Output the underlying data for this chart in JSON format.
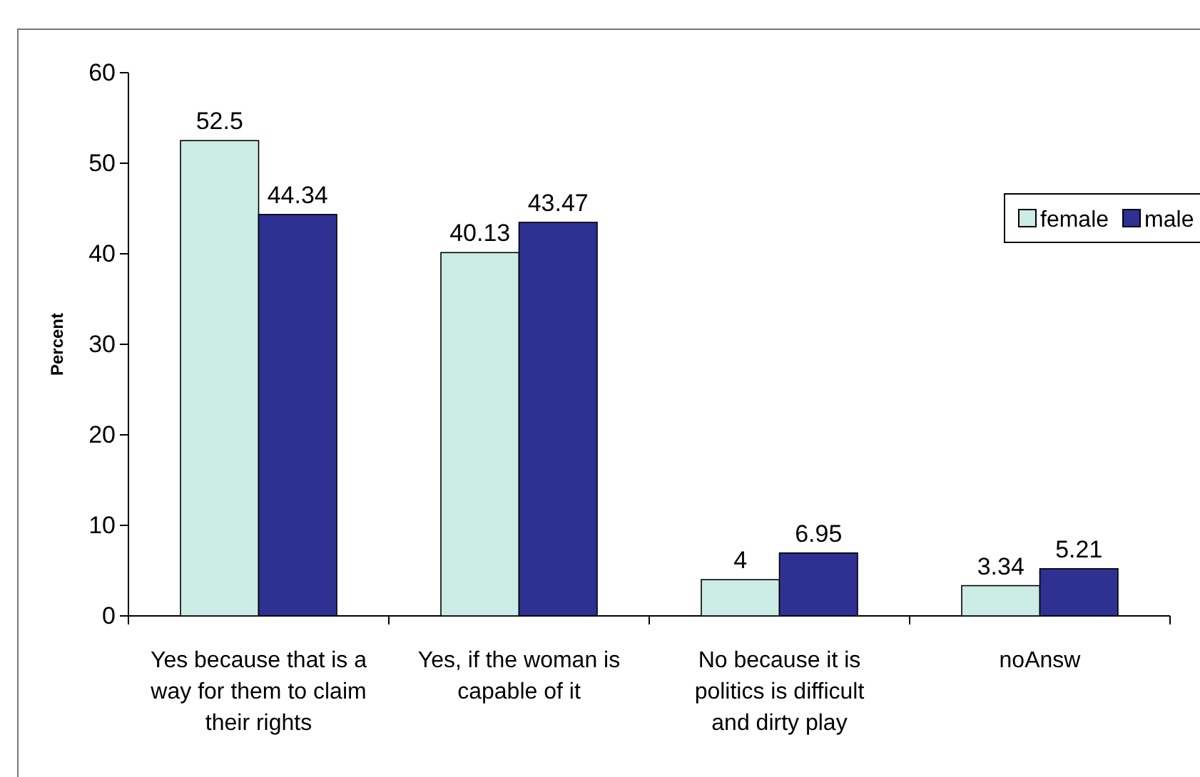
{
  "chart_data": {
    "type": "bar",
    "ylabel": "Percent",
    "categories": [
      "Yes because that is a way for them to claim their rights",
      "Yes, if the woman is capable of it",
      "No because it is politics is difficult and dirty play",
      "noAnsw"
    ],
    "series": [
      {
        "name": "female",
        "color": "#ccece6",
        "values": [
          52.5,
          40.13,
          4,
          3.34
        ]
      },
      {
        "name": "male",
        "color": "#2e3192",
        "values": [
          44.34,
          43.47,
          6.95,
          5.21
        ]
      }
    ],
    "ylim": [
      0,
      60
    ],
    "yticks": [
      0,
      10,
      20,
      30,
      40,
      50,
      60
    ],
    "grid": false,
    "legend": "top right",
    "data_labels": true
  }
}
